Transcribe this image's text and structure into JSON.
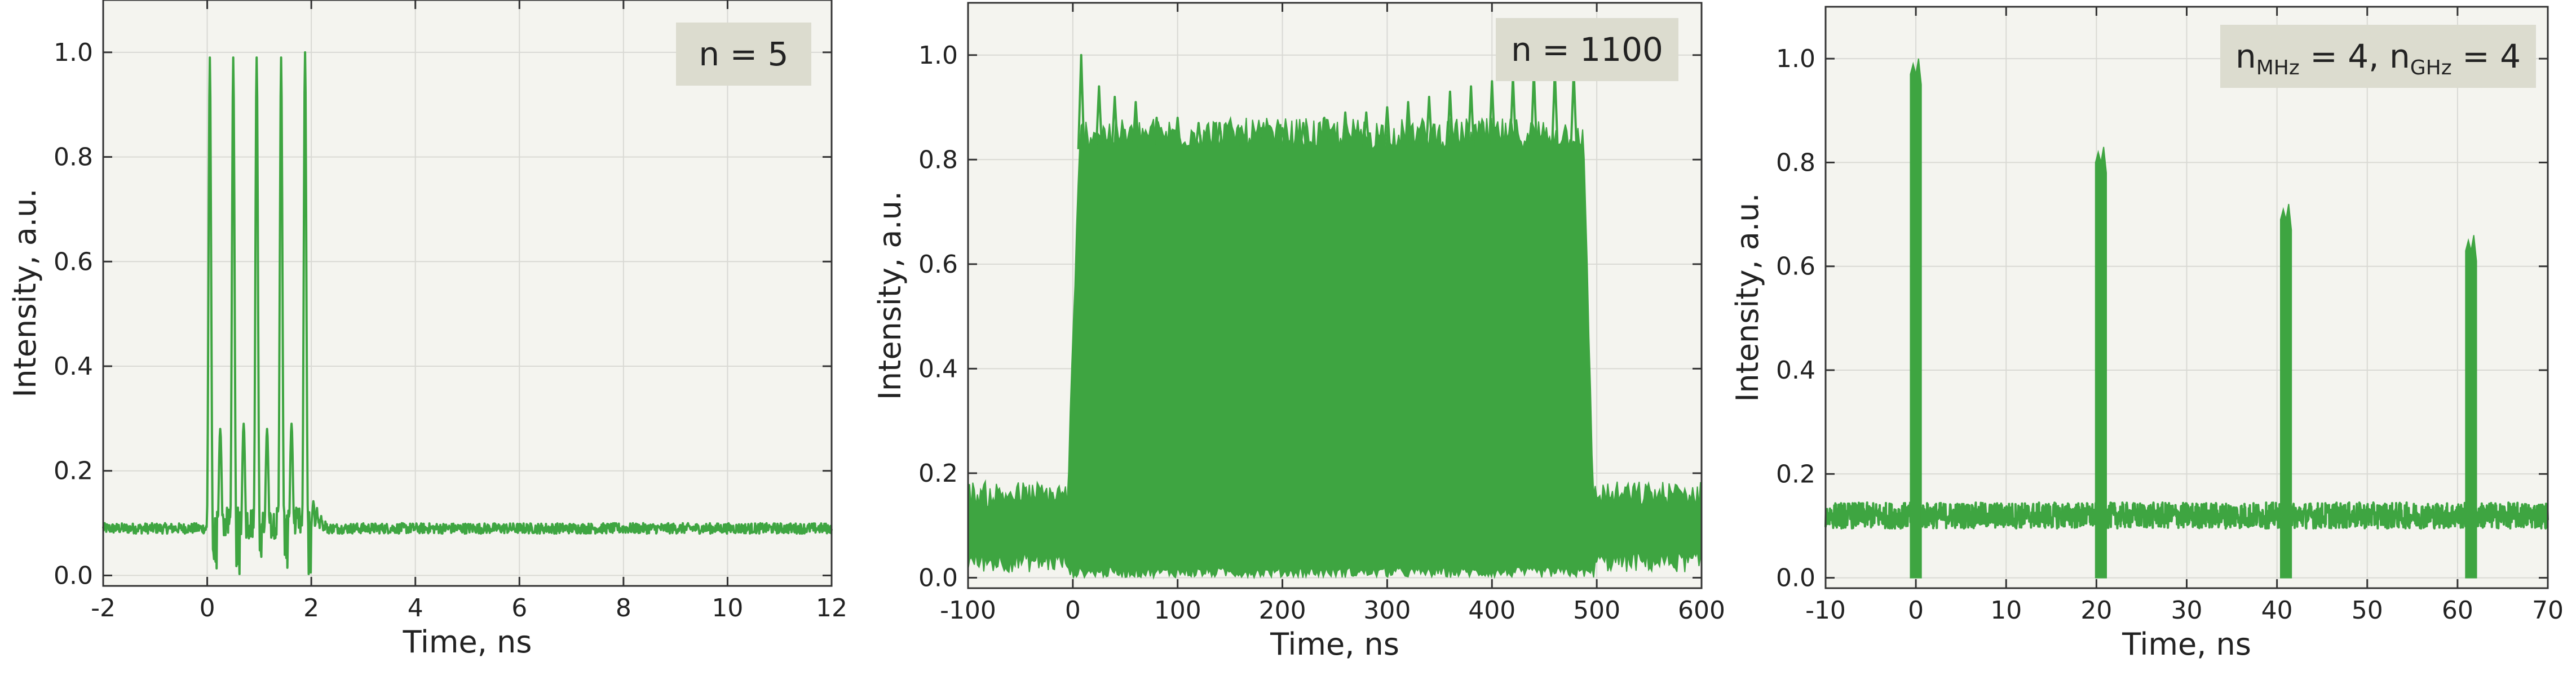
{
  "colors": {
    "trace": "#3ea541",
    "plot_background": "#f4f4ef",
    "legend_background": "#dcdccf"
  },
  "chart_data": [
    {
      "type": "line",
      "xlabel": "Time, ns",
      "ylabel": "Intensity, a.u.",
      "xlim": [
        -2,
        12
      ],
      "ylim": [
        -0.02,
        1.1
      ],
      "xticks": [
        -2,
        0,
        2,
        4,
        6,
        8,
        10,
        12
      ],
      "xtick_labels": [
        "-2",
        "0",
        "2",
        "4",
        "6",
        "8",
        "10",
        "12"
      ],
      "yticks": [
        0.0,
        0.2,
        0.4,
        0.6,
        0.8,
        1.0
      ],
      "ytick_labels": [
        "0.0",
        "0.2",
        "0.4",
        "0.6",
        "0.8",
        "1.0"
      ],
      "grid": true,
      "legend": {
        "text": "n = 5",
        "placement": "top-right"
      },
      "series": [
        {
          "baseline": 0.09,
          "noise": 0.01,
          "pulses": [
            {
              "t": 0.05,
              "peak": 0.99
            },
            {
              "t": 0.5,
              "peak": 0.99
            },
            {
              "t": 0.95,
              "peak": 0.99
            },
            {
              "t": 1.42,
              "peak": 0.99
            },
            {
              "t": 1.88,
              "peak": 1.0
            }
          ],
          "ripple_peaks": [
            0.28,
            0.29,
            0.28,
            0.29,
            0.25,
            0.14
          ]
        }
      ]
    },
    {
      "type": "line",
      "xlabel": "Time, ns",
      "ylabel": "Intensity, a.u.",
      "xlim": [
        -100,
        600
      ],
      "ylim": [
        -0.02,
        1.1
      ],
      "xticks": [
        -100,
        0,
        100,
        200,
        300,
        400,
        500,
        600
      ],
      "xtick_labels": [
        "-100",
        "0",
        "100",
        "200",
        "300",
        "400",
        "500",
        "600"
      ],
      "yticks": [
        0.0,
        0.2,
        0.4,
        0.6,
        0.8,
        1.0
      ],
      "ytick_labels": [
        "0.0",
        "0.2",
        "0.4",
        "0.6",
        "0.8",
        "1.0"
      ],
      "grid": true,
      "legend": {
        "text": "n = 1100",
        "placement": "top-right"
      },
      "series": [
        {
          "baseline_low": 0.03,
          "baseline_high": 0.15,
          "burst_start": -5,
          "burst_end": 497,
          "burst_high": 0.85,
          "burst_low": 0.0,
          "spike_peaks": [
            {
              "t": 8,
              "y": 1.0
            },
            {
              "t": 25,
              "y": 0.94
            },
            {
              "t": 40,
              "y": 0.92
            },
            {
              "t": 60,
              "y": 0.91
            },
            {
              "t": 80,
              "y": 0.88
            },
            {
              "t": 100,
              "y": 0.88
            },
            {
              "t": 120,
              "y": 0.87
            },
            {
              "t": 140,
              "y": 0.87
            },
            {
              "t": 160,
              "y": 0.86
            },
            {
              "t": 180,
              "y": 0.86
            },
            {
              "t": 200,
              "y": 0.86
            },
            {
              "t": 220,
              "y": 0.87
            },
            {
              "t": 240,
              "y": 0.88
            },
            {
              "t": 260,
              "y": 0.89
            },
            {
              "t": 280,
              "y": 0.89
            },
            {
              "t": 300,
              "y": 0.9
            },
            {
              "t": 320,
              "y": 0.91
            },
            {
              "t": 340,
              "y": 0.92
            },
            {
              "t": 360,
              "y": 0.93
            },
            {
              "t": 380,
              "y": 0.94
            },
            {
              "t": 400,
              "y": 0.95
            },
            {
              "t": 420,
              "y": 0.96
            },
            {
              "t": 440,
              "y": 0.97
            },
            {
              "t": 460,
              "y": 0.97
            },
            {
              "t": 478,
              "y": 0.97
            }
          ]
        }
      ]
    },
    {
      "type": "line",
      "xlabel": "Time, ns",
      "ylabel": "Intensity, a.u.",
      "xlim": [
        -10,
        70
      ],
      "ylim": [
        -0.02,
        1.1
      ],
      "xticks": [
        -10,
        0,
        10,
        20,
        30,
        40,
        50,
        60,
        70
      ],
      "xtick_labels": [
        "-10",
        "0",
        "10",
        "20",
        "30",
        "40",
        "50",
        "60",
        "70"
      ],
      "yticks": [
        0.0,
        0.2,
        0.4,
        0.6,
        0.8,
        1.0
      ],
      "ytick_labels": [
        "0.0",
        "0.2",
        "0.4",
        "0.6",
        "0.8",
        "1.0"
      ],
      "grid": true,
      "legend": {
        "placement": "top-right",
        "n_part1": "n",
        "sub1": "MHz",
        "mid": " = 4, n",
        "sub2": "GHz",
        "end": " = 4"
      },
      "series": [
        {
          "baseline": 0.12,
          "noise": 0.025,
          "bursts": [
            {
              "t": 0,
              "peak": 1.0
            },
            {
              "t": 20.5,
              "peak": 0.83
            },
            {
              "t": 41,
              "peak": 0.72
            },
            {
              "t": 61.5,
              "peak": 0.66
            }
          ]
        }
      ]
    }
  ]
}
